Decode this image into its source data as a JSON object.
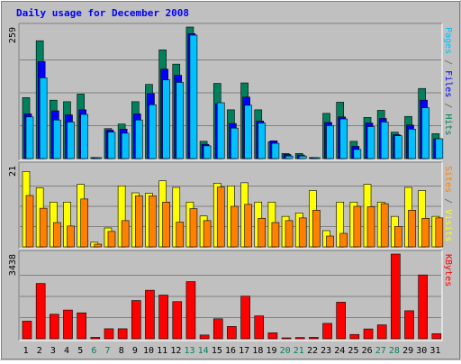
{
  "chart_data": [
    {
      "type": "bar",
      "title": "Daily usage for December 2008",
      "ylabel_parts": [
        {
          "text": "Pages",
          "color": "#00c0ff"
        },
        {
          "text": " / ",
          "color": "#606060"
        },
        {
          "text": "Files",
          "color": "#0000ff"
        },
        {
          "text": " / ",
          "color": "#606060"
        },
        {
          "text": "Hits",
          "color": "#00805c"
        }
      ],
      "ymax_label": "259",
      "ylim": [
        0,
        259
      ],
      "categories": [
        "1",
        "2",
        "3",
        "4",
        "5",
        "6",
        "7",
        "8",
        "9",
        "10",
        "11",
        "12",
        "13",
        "14",
        "15",
        "16",
        "17",
        "18",
        "19",
        "20",
        "21",
        "22",
        "23",
        "24",
        "25",
        "26",
        "27",
        "28",
        "29",
        "30",
        "31"
      ],
      "weekend_days": [
        "6",
        "7",
        "13",
        "14",
        "20",
        "21",
        "27",
        "28"
      ],
      "series": [
        {
          "name": "Hits",
          "color": "#00805c",
          "values": [
            120,
            232,
            115,
            112,
            127,
            2,
            59,
            68,
            112,
            146,
            214,
            186,
            259,
            34,
            148,
            96,
            149,
            96,
            33,
            10,
            10,
            2,
            89,
            111,
            34,
            81,
            95,
            52,
            83,
            138,
            49
          ]
        },
        {
          "name": "Files",
          "color": "#0000ff",
          "values": [
            88,
            191,
            94,
            86,
            96,
            1,
            56,
            58,
            88,
            128,
            176,
            164,
            246,
            28,
            108,
            69,
            121,
            74,
            35,
            8,
            7,
            1,
            71,
            82,
            24,
            70,
            79,
            47,
            66,
            115,
            39
          ]
        },
        {
          "name": "Pages",
          "color": "#00c0ff",
          "values": [
            82,
            159,
            76,
            72,
            87,
            1,
            52,
            50,
            76,
            106,
            155,
            150,
            243,
            25,
            110,
            60,
            105,
            70,
            30,
            5,
            5,
            1,
            65,
            78,
            18,
            63,
            72,
            45,
            58,
            100,
            39
          ]
        }
      ]
    },
    {
      "type": "bar",
      "ylabel_parts": [
        {
          "text": "Sites",
          "color": "#ff8000"
        },
        {
          "text": " / ",
          "color": "#606060"
        },
        {
          "text": "Visits",
          "color": "#ffff00"
        }
      ],
      "ymax_label": "21",
      "ylim": [
        0,
        21
      ],
      "categories": [
        "1",
        "2",
        "3",
        "4",
        "5",
        "6",
        "7",
        "8",
        "9",
        "10",
        "11",
        "12",
        "13",
        "14",
        "15",
        "16",
        "17",
        "18",
        "19",
        "20",
        "21",
        "22",
        "23",
        "24",
        "25",
        "26",
        "27",
        "28",
        "29",
        "30",
        "31"
      ],
      "series": [
        {
          "name": "Visits",
          "color": "#ffff00",
          "values": [
            19.5,
            15.3,
            11.6,
            11.6,
            16.2,
            1.2,
            4.9,
            15.8,
            14.0,
            13.9,
            17.1,
            15.4,
            11.6,
            8.0,
            16.5,
            15.8,
            16.6,
            11.6,
            11.6,
            7.9,
            8.8,
            14.6,
            4.2,
            11.6,
            11.6,
            16.2,
            11.6,
            7.9,
            15.4,
            14.6,
            7.9
          ]
        },
        {
          "name": "Sites",
          "color": "#ff8000",
          "values": [
            13.3,
            10.0,
            6.3,
            5.4,
            12.4,
            0.7,
            4.0,
            6.8,
            13.2,
            13.2,
            11.6,
            6.4,
            9.9,
            6.8,
            15.5,
            10.5,
            11.0,
            7.4,
            6.3,
            6.8,
            7.5,
            9.5,
            2.8,
            3.5,
            10.5,
            10.4,
            11.2,
            5.3,
            9.5,
            7.4,
            7.5
          ]
        }
      ]
    },
    {
      "type": "bar",
      "ylabel_parts": [
        {
          "text": "KBytes",
          "color": "#ff0000"
        }
      ],
      "ymax_label": "3438",
      "ylim": [
        0,
        3438
      ],
      "categories": [
        "1",
        "2",
        "3",
        "4",
        "5",
        "6",
        "7",
        "8",
        "9",
        "10",
        "11",
        "12",
        "13",
        "14",
        "15",
        "16",
        "17",
        "18",
        "19",
        "20",
        "21",
        "22",
        "23",
        "24",
        "25",
        "26",
        "27",
        "28",
        "29",
        "30",
        "31"
      ],
      "series": [
        {
          "name": "KBytes",
          "color": "#ff0000",
          "values": [
            715,
            2245,
            995,
            1167,
            1053,
            57,
            406,
            406,
            1552,
            1970,
            1773,
            1508,
            2320,
            152,
            811,
            500,
            1729,
            930,
            242,
            37,
            50,
            57,
            625,
            1485,
            175,
            399,
            565,
            3438,
            1139,
            2591,
            205
          ]
        }
      ]
    }
  ]
}
